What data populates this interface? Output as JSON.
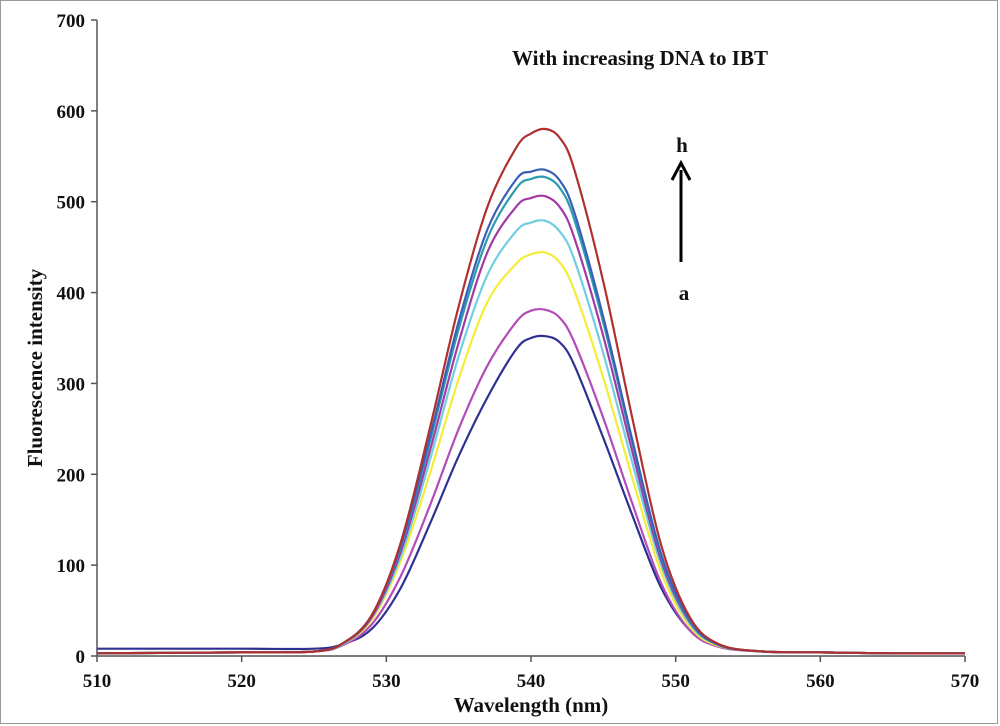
{
  "chart_data": {
    "type": "line",
    "title": "",
    "xlabel": "Wavelength (nm)",
    "ylabel": "Fluorescence intensity",
    "xlim": [
      510,
      570
    ],
    "ylim": [
      0,
      700
    ],
    "xticks": [
      510,
      520,
      530,
      540,
      550,
      560,
      570
    ],
    "yticks": [
      0,
      100,
      200,
      300,
      400,
      500,
      600,
      700
    ],
    "grid": false,
    "legend": "none",
    "annotations": {
      "text": "With increasing DNA to IBT",
      "arrow_top_label": "h",
      "arrow_bottom_label": "a"
    },
    "series": [
      {
        "color": "#2e3192",
        "x": [
          510,
          520,
          525,
          527,
          529,
          531,
          533,
          535,
          537,
          539,
          540,
          541,
          542,
          543,
          545,
          547,
          549,
          551,
          553,
          556,
          560,
          565,
          570
        ],
        "y": [
          8,
          8,
          8,
          13,
          30,
          75,
          145,
          220,
          285,
          338,
          350,
          352,
          345,
          320,
          240,
          155,
          75,
          28,
          11,
          5,
          4,
          3,
          3
        ]
      },
      {
        "color": "#b44bb8",
        "x": [
          510,
          520,
          525,
          527,
          529,
          531,
          533,
          535,
          537,
          539,
          540,
          541,
          542,
          543,
          545,
          547,
          549,
          551,
          553,
          556,
          560,
          565,
          570
        ],
        "y": [
          3,
          4,
          5,
          12,
          35,
          88,
          165,
          250,
          320,
          368,
          380,
          381,
          372,
          345,
          262,
          168,
          80,
          28,
          10,
          5,
          4,
          3,
          3
        ]
      },
      {
        "color": "#f5ec3a",
        "x": [
          510,
          520,
          525,
          527,
          529,
          531,
          533,
          535,
          537,
          539,
          540,
          541,
          542,
          543,
          545,
          547,
          549,
          551,
          553,
          556,
          560,
          565,
          570
        ],
        "y": [
          3,
          4,
          5,
          13,
          40,
          105,
          200,
          305,
          390,
          432,
          442,
          444,
          433,
          402,
          306,
          196,
          92,
          32,
          11,
          5,
          4,
          3,
          3
        ]
      },
      {
        "color": "#6ecfe0",
        "x": [
          510,
          520,
          525,
          527,
          529,
          531,
          533,
          535,
          537,
          539,
          540,
          541,
          542,
          543,
          545,
          547,
          549,
          551,
          553,
          556,
          560,
          565,
          570
        ],
        "y": [
          3,
          4,
          5,
          13,
          42,
          110,
          215,
          330,
          420,
          468,
          477,
          479,
          467,
          436,
          333,
          213,
          100,
          35,
          12,
          5,
          4,
          3,
          3
        ]
      },
      {
        "color": "#a23aa6",
        "x": [
          510,
          520,
          525,
          527,
          529,
          531,
          533,
          535,
          537,
          539,
          540,
          541,
          542,
          543,
          545,
          547,
          549,
          551,
          553,
          556,
          560,
          565,
          570
        ],
        "y": [
          3,
          4,
          5,
          14,
          43,
          115,
          225,
          345,
          445,
          495,
          504,
          506,
          494,
          460,
          352,
          225,
          105,
          37,
          12,
          5,
          4,
          3,
          3
        ]
      },
      {
        "color": "#2a9bb0",
        "x": [
          510,
          520,
          525,
          527,
          529,
          531,
          533,
          535,
          537,
          539,
          540,
          541,
          542,
          543,
          545,
          547,
          549,
          551,
          553,
          556,
          560,
          565,
          570
        ],
        "y": [
          3,
          4,
          5,
          14,
          45,
          120,
          235,
          360,
          460,
          515,
          525,
          527,
          515,
          480,
          367,
          235,
          110,
          38,
          12,
          5,
          4,
          3,
          3
        ]
      },
      {
        "color": "#3b5fb5",
        "x": [
          510,
          520,
          525,
          527,
          529,
          531,
          533,
          535,
          537,
          539,
          540,
          541,
          542,
          543,
          545,
          547,
          549,
          551,
          553,
          556,
          560,
          565,
          570
        ],
        "y": [
          3,
          4,
          5,
          14,
          45,
          122,
          240,
          368,
          470,
          525,
          533,
          535,
          523,
          488,
          373,
          238,
          112,
          39,
          12,
          5,
          4,
          3,
          3
        ]
      },
      {
        "color": "#b03030",
        "x": [
          510,
          520,
          525,
          527,
          529,
          531,
          533,
          535,
          537,
          539,
          540,
          541,
          542,
          543,
          545,
          547,
          549,
          551,
          553,
          556,
          560,
          565,
          570
        ],
        "y": [
          3,
          4,
          5,
          14,
          45,
          125,
          250,
          385,
          495,
          560,
          575,
          580,
          570,
          535,
          412,
          262,
          122,
          42,
          13,
          5,
          4,
          3,
          3
        ]
      }
    ]
  }
}
